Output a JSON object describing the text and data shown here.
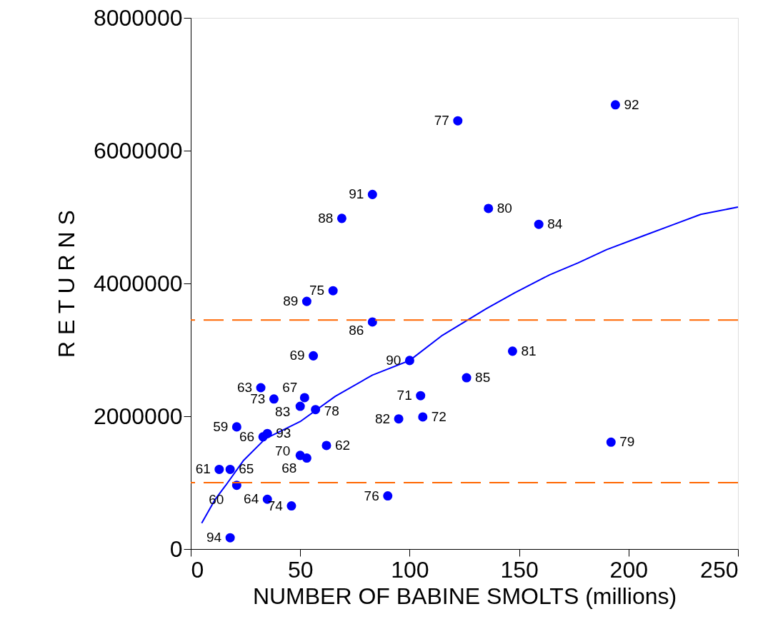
{
  "chart_data": {
    "type": "scatter",
    "xlabel": "NUMBER OF BABINE SMOLTS (millions)",
    "ylabel": "R E T U R N S",
    "xlim": [
      0,
      250
    ],
    "xticks": [
      0,
      50,
      100,
      150,
      200,
      250
    ],
    "ylim": [
      0,
      8000000
    ],
    "yticks": [
      0,
      2000000,
      4000000,
      6000000,
      8000000
    ],
    "grid": false,
    "series": [
      {
        "color": "#0000ff",
        "marker": "circle",
        "x": [
          194,
          122,
          83,
          69,
          136,
          159,
          65,
          53,
          83,
          56,
          100,
          147,
          126,
          105,
          106,
          95,
          192,
          90,
          32,
          38,
          52,
          50,
          57,
          21,
          33,
          35,
          62,
          50,
          53,
          13,
          18,
          21,
          35,
          46,
          18
        ],
        "values": [
          6690000,
          6450000,
          5340000,
          4980000,
          5130000,
          4890000,
          3890000,
          3730000,
          3420000,
          2910000,
          2840000,
          2980000,
          2580000,
          2310000,
          1990000,
          1960000,
          1610000,
          800000,
          2430000,
          2260000,
          2280000,
          2150000,
          2100000,
          1840000,
          1690000,
          1740000,
          1560000,
          1410000,
          1370000,
          1200000,
          1200000,
          960000,
          750000,
          650000,
          170000
        ]
      },
      {
        "type": "line",
        "color": "#0000ff",
        "line_style": "solid",
        "marker": "none",
        "x": [
          5,
          11,
          16,
          24,
          34,
          50,
          66,
          83,
          100,
          115,
          135,
          148,
          164,
          177,
          190,
          207,
          220,
          233,
          250
        ],
        "values": [
          390000,
          740000,
          960000,
          1330000,
          1660000,
          1920000,
          2300000,
          2620000,
          2840000,
          3220000,
          3620000,
          3860000,
          4130000,
          4310000,
          4510000,
          4720000,
          4880000,
          5040000,
          5150000
        ]
      }
    ],
    "annotations": [
      {
        "text": "92",
        "x": 194,
        "y": 6690000
      },
      {
        "text": "77",
        "x": 122,
        "y": 6450000
      },
      {
        "text": "91",
        "x": 83,
        "y": 5340000
      },
      {
        "text": "88",
        "x": 69,
        "y": 4980000
      },
      {
        "text": "80",
        "x": 136,
        "y": 5130000
      },
      {
        "text": "84",
        "x": 159,
        "y": 4890000
      },
      {
        "text": "75",
        "x": 65,
        "y": 3890000
      },
      {
        "text": "89",
        "x": 53,
        "y": 3730000
      },
      {
        "text": "86",
        "x": 83,
        "y": 3420000
      },
      {
        "text": "69",
        "x": 56,
        "y": 2910000
      },
      {
        "text": "90",
        "x": 100,
        "y": 2840000
      },
      {
        "text": "81",
        "x": 147,
        "y": 2980000
      },
      {
        "text": "85",
        "x": 126,
        "y": 2580000
      },
      {
        "text": "71",
        "x": 105,
        "y": 2310000
      },
      {
        "text": "72",
        "x": 106,
        "y": 1990000
      },
      {
        "text": "82",
        "x": 95,
        "y": 1960000
      },
      {
        "text": "79",
        "x": 192,
        "y": 1610000
      },
      {
        "text": "76",
        "x": 90,
        "y": 800000
      },
      {
        "text": "63",
        "x": 32,
        "y": 2430000
      },
      {
        "text": "73",
        "x": 38,
        "y": 2260000
      },
      {
        "text": "67",
        "x": 52,
        "y": 2280000
      },
      {
        "text": "83",
        "x": 50,
        "y": 2150000
      },
      {
        "text": "78",
        "x": 57,
        "y": 2100000
      },
      {
        "text": "59",
        "x": 21,
        "y": 1840000
      },
      {
        "text": "66",
        "x": 33,
        "y": 1690000
      },
      {
        "text": "93",
        "x": 35,
        "y": 1740000
      },
      {
        "text": "62",
        "x": 62,
        "y": 1560000
      },
      {
        "text": "70",
        "x": 50,
        "y": 1410000
      },
      {
        "text": "68",
        "x": 53,
        "y": 1370000
      },
      {
        "text": "61",
        "x": 13,
        "y": 1200000
      },
      {
        "text": "65",
        "x": 18,
        "y": 1200000
      },
      {
        "text": "60",
        "x": 21,
        "y": 960000
      },
      {
        "text": "64",
        "x": 35,
        "y": 750000
      },
      {
        "text": "74",
        "x": 46,
        "y": 650000
      },
      {
        "text": "94",
        "x": 18,
        "y": 170000
      }
    ],
    "ref_lines": [
      {
        "axis": "y",
        "value": 3450000,
        "color": "#ff6600",
        "line_style": "dashed"
      },
      {
        "axis": "y",
        "value": 1000000,
        "color": "#ff6600",
        "line_style": "dashed"
      }
    ]
  }
}
